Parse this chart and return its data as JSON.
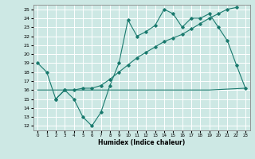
{
  "xlabel": "Humidex (Indice chaleur)",
  "xlim": [
    -0.5,
    23.5
  ],
  "ylim": [
    11.5,
    25.5
  ],
  "yticks": [
    12,
    13,
    14,
    15,
    16,
    17,
    18,
    19,
    20,
    21,
    22,
    23,
    24,
    25
  ],
  "xticks": [
    0,
    1,
    2,
    3,
    4,
    5,
    6,
    7,
    8,
    9,
    10,
    11,
    12,
    13,
    14,
    15,
    16,
    17,
    18,
    19,
    20,
    21,
    22,
    23
  ],
  "bg_color": "#cde8e4",
  "line_color": "#1a7a6e",
  "line1_x": [
    0,
    1,
    2,
    3,
    4,
    5,
    6,
    7,
    8,
    9,
    10,
    11,
    12,
    13,
    14,
    15,
    16,
    17,
    18,
    19,
    20,
    21,
    22,
    23
  ],
  "line1_y": [
    19,
    18,
    15,
    16,
    15,
    13,
    12,
    13.5,
    16.5,
    19,
    23.8,
    22,
    22.5,
    23.2,
    25,
    24.5,
    23,
    24,
    24,
    24.5,
    23,
    21.5,
    18.8,
    16.2
  ],
  "line2_x": [
    2,
    3,
    4,
    5,
    6,
    7,
    8,
    9,
    10,
    11,
    12,
    13,
    14,
    15,
    16,
    17,
    18,
    19,
    20,
    21,
    22
  ],
  "line2_y": [
    15.0,
    16.0,
    16.0,
    16.2,
    16.2,
    16.5,
    17.2,
    18.0,
    18.8,
    19.6,
    20.2,
    20.8,
    21.4,
    21.8,
    22.2,
    22.8,
    23.4,
    24.0,
    24.5,
    25.0,
    25.2
  ],
  "line3_x": [
    0,
    19,
    23
  ],
  "line3_y": [
    16.0,
    16.0,
    16.2
  ]
}
